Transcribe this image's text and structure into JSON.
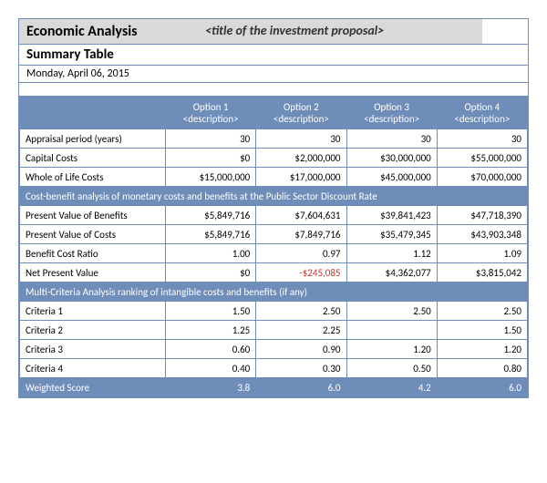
{
  "header": {
    "title": "Economic Analysis",
    "proposal": "<title of the investment proposal>",
    "subtitle": "Summary Table",
    "date": "Monday, April 06, 2015"
  },
  "columns": [
    {
      "title": "Option 1",
      "sub": "<description>"
    },
    {
      "title": "Option 2",
      "sub": "<description>"
    },
    {
      "title": "Option 3",
      "sub": "<description>"
    },
    {
      "title": "Option 4",
      "sub": "<description>"
    }
  ],
  "rows_top": [
    {
      "label": "Appraisal period (years)",
      "v": [
        "30",
        "30",
        "30",
        "30"
      ]
    },
    {
      "label": "Capital Costs",
      "v": [
        "$0",
        "$2,000,000",
        "$30,000,000",
        "$55,000,000"
      ]
    },
    {
      "label": "Whole of Life Costs",
      "v": [
        "$15,000,000",
        "$17,000,000",
        "$45,000,000",
        "$70,000,000"
      ]
    }
  ],
  "section1": "Cost-benefit analysis of monetary costs and benefits at the Public Sector Discount Rate",
  "rows_cba": [
    {
      "label": "Present Value of Benefits",
      "v": [
        "$5,849,716",
        "$7,604,631",
        "$39,841,423",
        "$47,718,390"
      ]
    },
    {
      "label": "Present Value of Costs",
      "v": [
        "$5,849,716",
        "$7,849,716",
        "$35,479,345",
        "$43,903,348"
      ]
    },
    {
      "label": "Benefit Cost Ratio",
      "v": [
        "1.00",
        "0.97",
        "1.12",
        "1.09"
      ]
    },
    {
      "label": "Net Present Value",
      "v": [
        "$0",
        "-$245,085",
        "$4,362,077",
        "$3,815,042"
      ],
      "neg_idx": 1
    }
  ],
  "section2": "Multi-Criteria Analysis ranking of intangible costs and benefits (if any)",
  "rows_mca": [
    {
      "label": "Criteria 1",
      "v": [
        "1.50",
        "2.50",
        "2.50",
        "2.50"
      ]
    },
    {
      "label": "Criteria 2",
      "v": [
        "1.25",
        "2.25",
        "",
        "1.50"
      ]
    },
    {
      "label": "Criteria 3",
      "v": [
        "0.60",
        "0.90",
        "1.20",
        "1.20"
      ]
    },
    {
      "label": "Criteria 4",
      "v": [
        "0.40",
        "0.30",
        "0.50",
        "0.80"
      ]
    }
  ],
  "weighted": {
    "label": "Weighted Score",
    "v": [
      "3.8",
      "6.0",
      "4.2",
      "6.0"
    ]
  },
  "style": {
    "header_bg": "#6f8db9",
    "header_fg": "#ffffff",
    "title_bg": "#d9d9d9",
    "neg_color": "#c0392b",
    "border_color": "#6f8db9",
    "font_family": "Calibri, Arial, sans-serif"
  }
}
